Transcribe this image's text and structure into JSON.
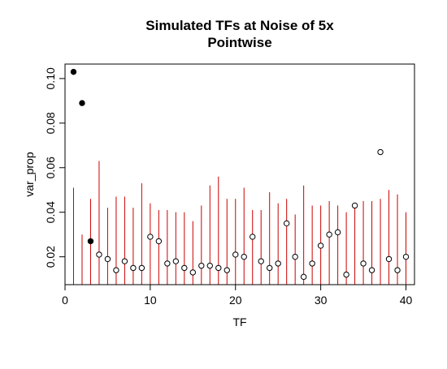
{
  "chart_data": {
    "type": "scatter",
    "title_line1": "Simulated TFs at Noise of 5x",
    "title_line2": "Pointwise",
    "xlabel": "TF",
    "ylabel": "var_prop",
    "xlim": [
      0,
      41
    ],
    "ylim": [
      0.0075,
      0.1065
    ],
    "xticks": [
      0,
      10,
      20,
      30,
      40
    ],
    "xtick_labels": [
      "0",
      "10",
      "20",
      "30",
      "40"
    ],
    "yticks": [
      0.02,
      0.04,
      0.06,
      0.08,
      0.1
    ],
    "ytick_labels": [
      "0.02",
      "0.04",
      "0.06",
      "0.08",
      "0.10"
    ],
    "grid": false,
    "line_color": "#cc0000",
    "point_color": "#000000",
    "x": [
      1,
      2,
      3,
      4,
      5,
      6,
      7,
      8,
      9,
      10,
      11,
      12,
      13,
      14,
      15,
      16,
      17,
      18,
      19,
      20,
      21,
      22,
      23,
      24,
      25,
      26,
      27,
      28,
      29,
      30,
      31,
      32,
      33,
      34,
      35,
      36,
      37,
      38,
      39,
      40
    ],
    "points": [
      0.103,
      0.089,
      0.027,
      0.021,
      0.019,
      0.014,
      0.018,
      0.015,
      0.015,
      0.029,
      0.027,
      0.017,
      0.018,
      0.015,
      0.013,
      0.016,
      0.016,
      0.015,
      0.014,
      0.021,
      0.02,
      0.029,
      0.018,
      0.015,
      0.017,
      0.035,
      0.02,
      0.011,
      0.017,
      0.025,
      0.03,
      0.031,
      0.012,
      0.043,
      0.017,
      0.014,
      0.067,
      0.019,
      0.014,
      0.02
    ],
    "filled": [
      true,
      true,
      true,
      false,
      false,
      false,
      false,
      false,
      false,
      false,
      false,
      false,
      false,
      false,
      false,
      false,
      false,
      false,
      false,
      false,
      false,
      false,
      false,
      false,
      false,
      false,
      false,
      false,
      false,
      false,
      false,
      false,
      false,
      false,
      false,
      false,
      false,
      false,
      false,
      false
    ],
    "thresholds": [
      0.051,
      0.03,
      0.046,
      0.063,
      0.042,
      0.047,
      0.047,
      0.042,
      0.053,
      0.044,
      0.041,
      0.041,
      0.04,
      0.04,
      0.036,
      0.043,
      0.052,
      0.056,
      0.046,
      0.046,
      0.051,
      0.041,
      0.041,
      0.049,
      0.044,
      0.046,
      0.039,
      0.052,
      0.043,
      0.043,
      0.045,
      0.043,
      0.04,
      0.044,
      0.045,
      0.045,
      0.046,
      0.05,
      0.048,
      0.04
    ]
  }
}
